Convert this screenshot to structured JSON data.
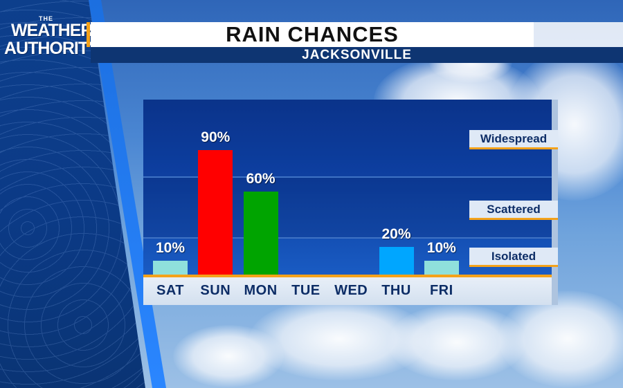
{
  "branding": {
    "logo_line1": "THE",
    "logo_line2": "WEATHER",
    "logo_line3": "AUTHORITY"
  },
  "header": {
    "title": "RAIN CHANCES",
    "subtitle": "JACKSONVILLE"
  },
  "colors": {
    "accent": "#f4a21a",
    "navy": "#0e3572"
  },
  "chart_data": {
    "type": "bar",
    "title": "RAIN CHANCES",
    "subtitle": "JACKSONVILLE",
    "categories": [
      "SAT",
      "SUN",
      "MON",
      "TUE",
      "WED",
      "THU",
      "FRI"
    ],
    "values": [
      10,
      90,
      60,
      0,
      0,
      20,
      10
    ],
    "value_labels": [
      "10%",
      "90%",
      "60%",
      "",
      "",
      "20%",
      "10%"
    ],
    "bar_colors": [
      "#8fe0dc",
      "#ff0000",
      "#00a400",
      "#1a5cc4",
      "#1a5cc4",
      "#00a6ff",
      "#8fe0dc"
    ],
    "ylim": [
      0,
      100
    ],
    "unit": "%",
    "category_bands": [
      "Widespread",
      "Scattered",
      "Isolated"
    ],
    "grid": true
  }
}
